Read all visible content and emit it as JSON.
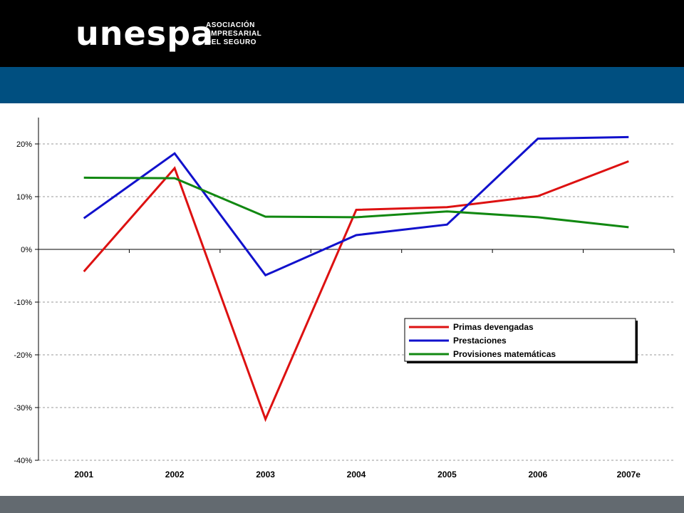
{
  "header": {
    "logo_word": "unespa",
    "logo_lines": [
      "ASOCIACIÓN",
      "EMPRESARIAL",
      "DEL SEGURO"
    ]
  },
  "colors": {
    "top_bar": "#000000",
    "band": "#004f80",
    "footer": "#636a70"
  },
  "chart_data": {
    "type": "line",
    "categories": [
      "2001",
      "2002",
      "2003",
      "2004",
      "2005",
      "2006",
      "2007e"
    ],
    "ylim": [
      -40,
      25
    ],
    "yticks": [
      20,
      10,
      0,
      -10,
      -20,
      -30,
      -40
    ],
    "ytick_labels": [
      "20%",
      "10%",
      "0%",
      "-10%",
      "-20%",
      "-30%",
      "-40%"
    ],
    "grid": true,
    "legend_position": "lower-right",
    "series": [
      {
        "name": "Primas devengadas",
        "color": "#dd1111",
        "values": [
          -4.2,
          15.4,
          -32.2,
          7.5,
          8.0,
          10.1,
          16.7
        ]
      },
      {
        "name": "Prestaciones",
        "color": "#1111cc",
        "values": [
          5.9,
          18.2,
          -4.9,
          2.7,
          4.7,
          21.0,
          21.3
        ]
      },
      {
        "name": "Provisiones matemáticas",
        "color": "#118811",
        "values": [
          13.6,
          13.5,
          6.2,
          6.1,
          7.2,
          6.1,
          4.2
        ]
      }
    ]
  }
}
